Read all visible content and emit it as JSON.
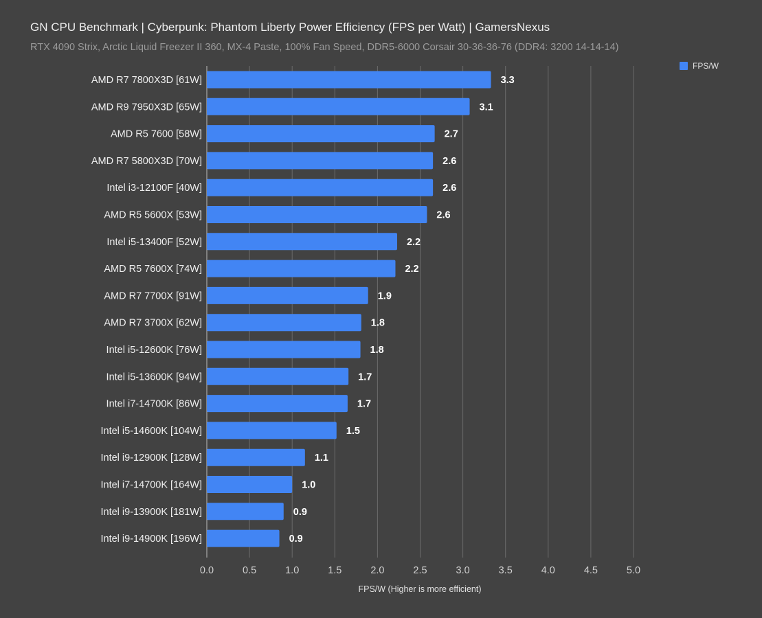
{
  "header": {
    "title": "GN CPU Benchmark | Cyberpunk: Phantom Liberty Power Efficiency (FPS per Watt) | GamersNexus",
    "subtitle": "RTX 4090 Strix, Arctic Liquid Freezer II 360, MX-4 Paste, 100% Fan Speed, DDR5-6000 Corsair 30-36-36-76 (DDR4: 3200 14-14-14)"
  },
  "colors": {
    "background": "#424242",
    "bar": "#4285f4",
    "grid": "#6b6b6b"
  },
  "chart_data": {
    "type": "bar",
    "orientation": "horizontal",
    "title": "GN CPU Benchmark | Cyberpunk: Phantom Liberty Power Efficiency (FPS per Watt) | GamersNexus",
    "subtitle": "RTX 4090 Strix, Arctic Liquid Freezer II 360, MX-4 Paste, 100% Fan Speed, DDR5-6000 Corsair 30-36-36-76 (DDR4: 3200 14-14-14)",
    "xlabel": "FPS/W (Higher is more efficient)",
    "ylabel": "",
    "xlim": [
      0,
      5.0
    ],
    "xticks": [
      "0.0",
      "0.5",
      "1.0",
      "1.5",
      "2.0",
      "2.5",
      "3.0",
      "3.5",
      "4.0",
      "4.5",
      "5.0"
    ],
    "grid": true,
    "legend": {
      "position": "top-right",
      "entries": [
        "FPS/W"
      ]
    },
    "categories": [
      "AMD R7 7800X3D [61W]",
      "AMD R9 7950X3D [65W]",
      "AMD R5 7600 [58W]",
      "AMD R7 5800X3D [70W]",
      "Intel i3-12100F [40W]",
      "AMD R5 5600X [53W]",
      "Intel i5-13400F [52W]",
      "AMD R5 7600X [74W]",
      "AMD R7 7700X [91W]",
      "AMD R7 3700X [62W]",
      "Intel i5-12600K [76W]",
      "Intel i5-13600K [94W]",
      "Intel i7-14700K [86W]",
      "Intel i5-14600K [104W]",
      "Intel i9-12900K [128W]",
      "Intel i7-14700K [164W]",
      "Intel i9-13900K [181W]",
      "Intel i9-14900K [196W]"
    ],
    "series": [
      {
        "name": "FPS/W",
        "values": [
          3.33,
          3.08,
          2.67,
          2.65,
          2.65,
          2.58,
          2.23,
          2.21,
          1.89,
          1.81,
          1.8,
          1.66,
          1.65,
          1.52,
          1.15,
          1.0,
          0.9,
          0.85
        ],
        "labels": [
          "3.3",
          "3.1",
          "2.7",
          "2.6",
          "2.6",
          "2.6",
          "2.2",
          "2.2",
          "1.9",
          "1.8",
          "1.8",
          "1.7",
          "1.7",
          "1.5",
          "1.1",
          "1.0",
          "0.9",
          "0.9"
        ]
      }
    ]
  }
}
